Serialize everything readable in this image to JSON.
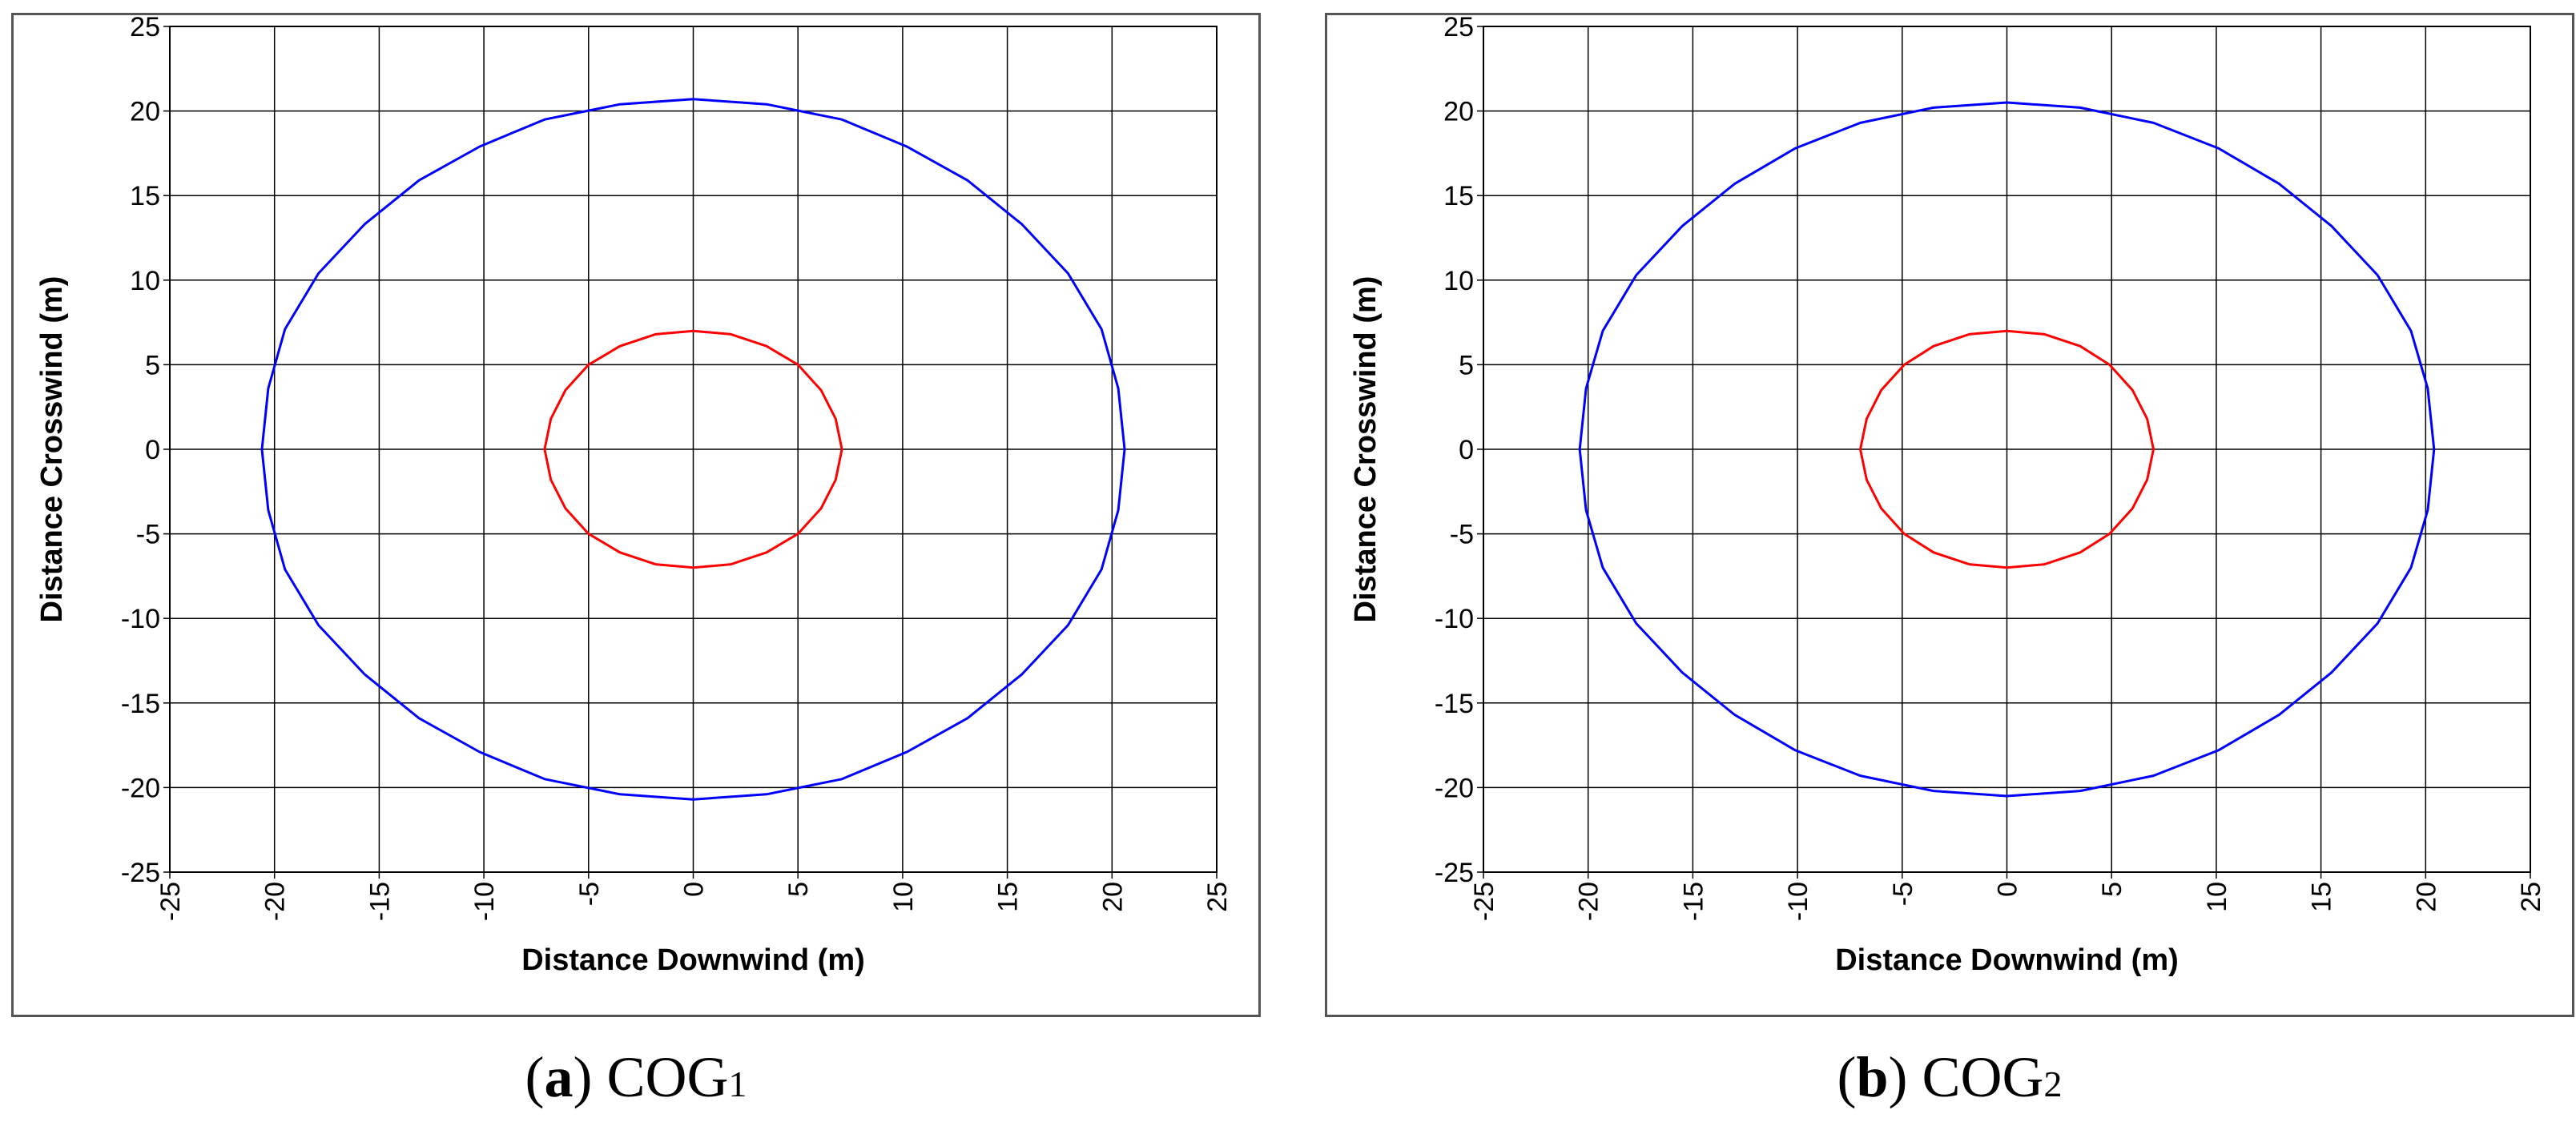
{
  "chart_data": [
    {
      "type": "line",
      "xlabel": "Distance Downwind (m)",
      "ylabel": "Distance Crosswind (m)",
      "xlim": [
        -25,
        25
      ],
      "ylim": [
        -25,
        25
      ],
      "xticks": [
        -25,
        -20,
        -15,
        -10,
        -5,
        0,
        5,
        10,
        15,
        20,
        25
      ],
      "yticks": [
        25,
        20,
        15,
        10,
        5,
        0,
        -5,
        -10,
        -15,
        -20,
        -25
      ],
      "grid": true,
      "series": [
        {
          "color": "#0000ff",
          "x": [
            0,
            3.5,
            7.1,
            10.2,
            13.1,
            15.7,
            17.9,
            19.5,
            20.3,
            20.6,
            20.3,
            19.5,
            17.9,
            15.7,
            13.1,
            10.2,
            7.1,
            3.5,
            0,
            -3.5,
            -7.1,
            -10.2,
            -13.1,
            -15.7,
            -17.9,
            -19.5,
            -20.3,
            -20.6,
            -20.3,
            -19.5,
            -17.9,
            -15.7,
            -13.1,
            -10.2,
            -7.1,
            -3.5,
            0
          ],
          "y": [
            20.7,
            20.4,
            19.5,
            17.9,
            15.9,
            13.3,
            10.4,
            7.1,
            3.6,
            0,
            -3.6,
            -7.1,
            -10.4,
            -13.3,
            -15.9,
            -17.9,
            -19.5,
            -20.4,
            -20.7,
            -20.4,
            -19.5,
            -17.9,
            -15.9,
            -13.3,
            -10.4,
            -7.1,
            -3.6,
            0,
            3.6,
            7.1,
            10.4,
            13.3,
            15.9,
            17.9,
            19.5,
            20.4,
            20.7
          ]
        },
        {
          "color": "#ff0000",
          "x": [
            0,
            1.8,
            3.5,
            5.0,
            6.1,
            6.8,
            7.1,
            6.8,
            6.1,
            5.0,
            3.5,
            1.8,
            0,
            -1.8,
            -3.5,
            -5.0,
            -6.1,
            -6.8,
            -7.1,
            -6.8,
            -6.1,
            -5.0,
            -3.5,
            -1.8,
            0
          ],
          "y": [
            7.0,
            6.8,
            6.1,
            5.0,
            3.5,
            1.8,
            0,
            -1.8,
            -3.5,
            -5.0,
            -6.1,
            -6.8,
            -7.0,
            -6.8,
            -6.1,
            -5.0,
            -3.5,
            -1.8,
            0,
            1.8,
            3.5,
            5.0,
            6.1,
            6.8,
            7.0
          ]
        }
      ]
    },
    {
      "type": "line",
      "xlabel": "Distance Downwind (m)",
      "ylabel": "Distance Crosswind (m)",
      "xlim": [
        -25,
        25
      ],
      "ylim": [
        -25,
        25
      ],
      "xticks": [
        -25,
        -20,
        -15,
        -10,
        -5,
        0,
        5,
        10,
        15,
        20,
        25
      ],
      "yticks": [
        25,
        20,
        15,
        10,
        5,
        0,
        -5,
        -10,
        -15,
        -20,
        -25
      ],
      "grid": true,
      "series": [
        {
          "color": "#0000ff",
          "x": [
            0,
            3.5,
            7.0,
            10.1,
            13.0,
            15.5,
            17.7,
            19.3,
            20.1,
            20.4,
            20.1,
            19.3,
            17.7,
            15.5,
            13.0,
            10.1,
            7.0,
            3.5,
            0,
            -3.5,
            -7.0,
            -10.1,
            -13.0,
            -15.5,
            -17.7,
            -19.3,
            -20.1,
            -20.4,
            -20.1,
            -19.3,
            -17.7,
            -15.5,
            -13.0,
            -10.1,
            -7.0,
            -3.5,
            0
          ],
          "y": [
            20.5,
            20.2,
            19.3,
            17.8,
            15.7,
            13.2,
            10.3,
            7.0,
            3.6,
            0,
            -3.6,
            -7.0,
            -10.3,
            -13.2,
            -15.7,
            -17.8,
            -19.3,
            -20.2,
            -20.5,
            -20.2,
            -19.3,
            -17.8,
            -15.7,
            -13.2,
            -10.3,
            -7.0,
            -3.6,
            0,
            3.6,
            7.0,
            10.3,
            13.2,
            15.7,
            17.8,
            19.3,
            20.2,
            20.5
          ]
        },
        {
          "color": "#ff0000",
          "x": [
            0,
            1.8,
            3.5,
            4.9,
            6.0,
            6.7,
            7.0,
            6.7,
            6.0,
            4.9,
            3.5,
            1.8,
            0,
            -1.8,
            -3.5,
            -4.9,
            -6.0,
            -6.7,
            -7.0,
            -6.7,
            -6.0,
            -4.9,
            -3.5,
            -1.8,
            0
          ],
          "y": [
            7.0,
            6.8,
            6.1,
            5.0,
            3.5,
            1.8,
            0,
            -1.8,
            -3.5,
            -5.0,
            -6.1,
            -6.8,
            -7.0,
            -6.8,
            -6.1,
            -5.0,
            -3.5,
            -1.8,
            0,
            1.8,
            3.5,
            5.0,
            6.1,
            6.8,
            7.0
          ]
        }
      ]
    }
  ],
  "captions": [
    {
      "letter": "a",
      "name": "COG",
      "sub": "1"
    },
    {
      "letter": "b",
      "name": "COG",
      "sub": "2"
    }
  ]
}
